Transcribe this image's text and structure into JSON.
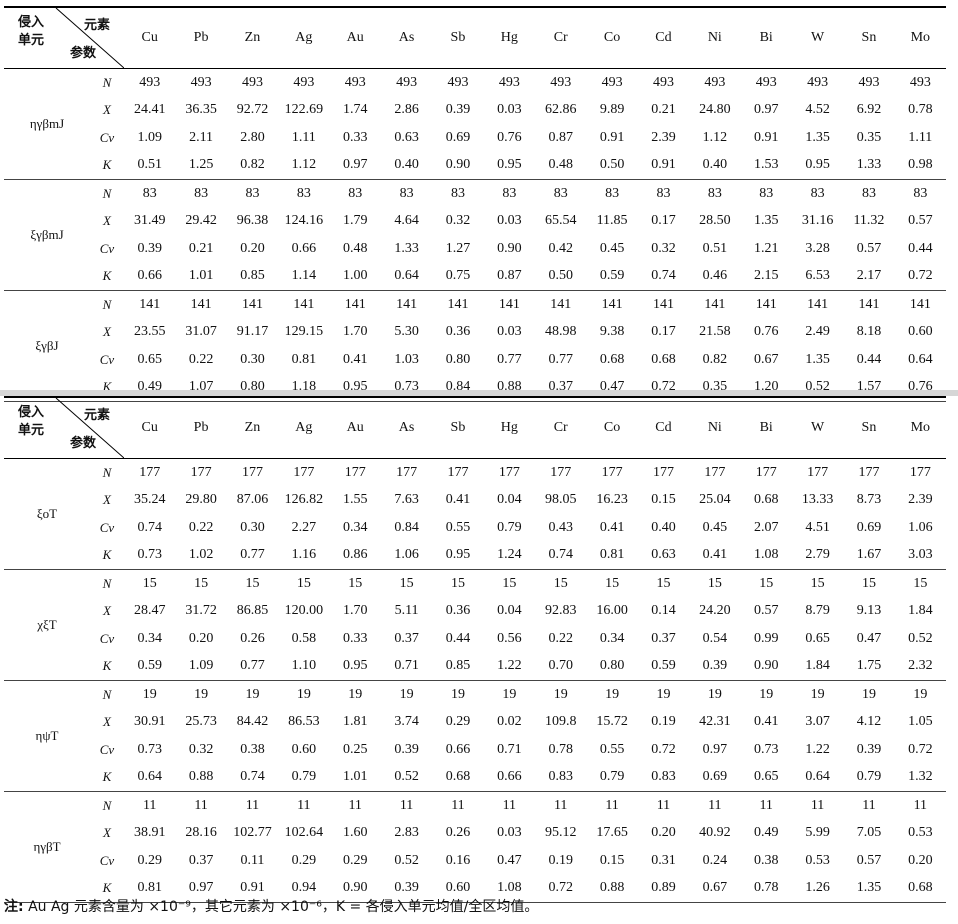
{
  "header": {
    "top_left": [
      "侵入",
      "单元"
    ],
    "top_right": "元素",
    "bottom": "参数",
    "elements": [
      "Cu",
      "Pb",
      "Zn",
      "Ag",
      "Au",
      "As",
      "Sb",
      "Hg",
      "Cr",
      "Co",
      "Cd",
      "Ni",
      "Bi",
      "W",
      "Sn",
      "Mo"
    ]
  },
  "params": [
    "N",
    "X",
    "Cv",
    "K"
  ],
  "table1": [
    {
      "unit": "ηγβmJ",
      "rows": [
        [
          "493",
          "493",
          "493",
          "493",
          "493",
          "493",
          "493",
          "493",
          "493",
          "493",
          "493",
          "493",
          "493",
          "493",
          "493",
          "493"
        ],
        [
          "24.41",
          "36.35",
          "92.72",
          "122.69",
          "1.74",
          "2.86",
          "0.39",
          "0.03",
          "62.86",
          "9.89",
          "0.21",
          "24.80",
          "0.97",
          "4.52",
          "6.92",
          "0.78"
        ],
        [
          "1.09",
          "2.11",
          "2.80",
          "1.11",
          "0.33",
          "0.63",
          "0.69",
          "0.76",
          "0.87",
          "0.91",
          "2.39",
          "1.12",
          "0.91",
          "1.35",
          "0.35",
          "1.11"
        ],
        [
          "0.51",
          "1.25",
          "0.82",
          "1.12",
          "0.97",
          "0.40",
          "0.90",
          "0.95",
          "0.48",
          "0.50",
          "0.91",
          "0.40",
          "1.53",
          "0.95",
          "1.33",
          "0.98"
        ]
      ]
    },
    {
      "unit": "ξγβmJ",
      "rows": [
        [
          "83",
          "83",
          "83",
          "83",
          "83",
          "83",
          "83",
          "83",
          "83",
          "83",
          "83",
          "83",
          "83",
          "83",
          "83",
          "83"
        ],
        [
          "31.49",
          "29.42",
          "96.38",
          "124.16",
          "1.79",
          "4.64",
          "0.32",
          "0.03",
          "65.54",
          "11.85",
          "0.17",
          "28.50",
          "1.35",
          "31.16",
          "11.32",
          "0.57"
        ],
        [
          "0.39",
          "0.21",
          "0.20",
          "0.66",
          "0.48",
          "1.33",
          "1.27",
          "0.90",
          "0.42",
          "0.45",
          "0.32",
          "0.51",
          "1.21",
          "3.28",
          "0.57",
          "0.44"
        ],
        [
          "0.66",
          "1.01",
          "0.85",
          "1.14",
          "1.00",
          "0.64",
          "0.75",
          "0.87",
          "0.50",
          "0.59",
          "0.74",
          "0.46",
          "2.15",
          "6.53",
          "2.17",
          "0.72"
        ]
      ]
    },
    {
      "unit": "ξγβJ",
      "rows": [
        [
          "141",
          "141",
          "141",
          "141",
          "141",
          "141",
          "141",
          "141",
          "141",
          "141",
          "141",
          "141",
          "141",
          "141",
          "141",
          "141"
        ],
        [
          "23.55",
          "31.07",
          "91.17",
          "129.15",
          "1.70",
          "5.30",
          "0.36",
          "0.03",
          "48.98",
          "9.38",
          "0.17",
          "21.58",
          "0.76",
          "2.49",
          "8.18",
          "0.60"
        ],
        [
          "0.65",
          "0.22",
          "0.30",
          "0.81",
          "0.41",
          "1.03",
          "0.80",
          "0.77",
          "0.77",
          "0.68",
          "0.68",
          "0.82",
          "0.67",
          "1.35",
          "0.44",
          "0.64"
        ],
        [
          "0.49",
          "1.07",
          "0.80",
          "1.18",
          "0.95",
          "0.73",
          "0.84",
          "0.88",
          "0.37",
          "0.47",
          "0.72",
          "0.35",
          "1.20",
          "0.52",
          "1.57",
          "0.76"
        ]
      ]
    }
  ],
  "table2": [
    {
      "unit": "ξoT",
      "rows": [
        [
          "177",
          "177",
          "177",
          "177",
          "177",
          "177",
          "177",
          "177",
          "177",
          "177",
          "177",
          "177",
          "177",
          "177",
          "177",
          "177"
        ],
        [
          "35.24",
          "29.80",
          "87.06",
          "126.82",
          "1.55",
          "7.63",
          "0.41",
          "0.04",
          "98.05",
          "16.23",
          "0.15",
          "25.04",
          "0.68",
          "13.33",
          "8.73",
          "2.39"
        ],
        [
          "0.74",
          "0.22",
          "0.30",
          "2.27",
          "0.34",
          "0.84",
          "0.55",
          "0.79",
          "0.43",
          "0.41",
          "0.40",
          "0.45",
          "2.07",
          "4.51",
          "0.69",
          "1.06"
        ],
        [
          "0.73",
          "1.02",
          "0.77",
          "1.16",
          "0.86",
          "1.06",
          "0.95",
          "1.24",
          "0.74",
          "0.81",
          "0.63",
          "0.41",
          "1.08",
          "2.79",
          "1.67",
          "3.03"
        ]
      ]
    },
    {
      "unit": "χξT",
      "rows": [
        [
          "15",
          "15",
          "15",
          "15",
          "15",
          "15",
          "15",
          "15",
          "15",
          "15",
          "15",
          "15",
          "15",
          "15",
          "15",
          "15"
        ],
        [
          "28.47",
          "31.72",
          "86.85",
          "120.00",
          "1.70",
          "5.11",
          "0.36",
          "0.04",
          "92.83",
          "16.00",
          "0.14",
          "24.20",
          "0.57",
          "8.79",
          "9.13",
          "1.84"
        ],
        [
          "0.34",
          "0.20",
          "0.26",
          "0.58",
          "0.33",
          "0.37",
          "0.44",
          "0.56",
          "0.22",
          "0.34",
          "0.37",
          "0.54",
          "0.99",
          "0.65",
          "0.47",
          "0.52"
        ],
        [
          "0.59",
          "1.09",
          "0.77",
          "1.10",
          "0.95",
          "0.71",
          "0.85",
          "1.22",
          "0.70",
          "0.80",
          "0.59",
          "0.39",
          "0.90",
          "1.84",
          "1.75",
          "2.32"
        ]
      ]
    },
    {
      "unit": "ηψT",
      "rows": [
        [
          "19",
          "19",
          "19",
          "19",
          "19",
          "19",
          "19",
          "19",
          "19",
          "19",
          "19",
          "19",
          "19",
          "19",
          "19",
          "19"
        ],
        [
          "30.91",
          "25.73",
          "84.42",
          "86.53",
          "1.81",
          "3.74",
          "0.29",
          "0.02",
          "109.8",
          "15.72",
          "0.19",
          "42.31",
          "0.41",
          "3.07",
          "4.12",
          "1.05"
        ],
        [
          "0.73",
          "0.32",
          "0.38",
          "0.60",
          "0.25",
          "0.39",
          "0.66",
          "0.71",
          "0.78",
          "0.55",
          "0.72",
          "0.97",
          "0.73",
          "1.22",
          "0.39",
          "0.72"
        ],
        [
          "0.64",
          "0.88",
          "0.74",
          "0.79",
          "1.01",
          "0.52",
          "0.68",
          "0.66",
          "0.83",
          "0.79",
          "0.83",
          "0.69",
          "0.65",
          "0.64",
          "0.79",
          "1.32"
        ]
      ]
    },
    {
      "unit": "ηγβT",
      "rows": [
        [
          "11",
          "11",
          "11",
          "11",
          "11",
          "11",
          "11",
          "11",
          "11",
          "11",
          "11",
          "11",
          "11",
          "11",
          "11",
          "11"
        ],
        [
          "38.91",
          "28.16",
          "102.77",
          "102.64",
          "1.60",
          "2.83",
          "0.26",
          "0.03",
          "95.12",
          "17.65",
          "0.20",
          "40.92",
          "0.49",
          "5.99",
          "7.05",
          "0.53"
        ],
        [
          "0.29",
          "0.37",
          "0.11",
          "0.29",
          "0.29",
          "0.52",
          "0.16",
          "0.47",
          "0.19",
          "0.15",
          "0.31",
          "0.24",
          "0.38",
          "0.53",
          "0.57",
          "0.20"
        ],
        [
          "0.81",
          "0.97",
          "0.91",
          "0.94",
          "0.90",
          "0.39",
          "0.60",
          "1.08",
          "0.72",
          "0.88",
          "0.89",
          "0.67",
          "0.78",
          "1.26",
          "1.35",
          "0.68"
        ]
      ]
    }
  ],
  "note": {
    "label": "注:",
    "text": "Au Ag 元素含量为 ×10⁻⁹，其它元素为 ×10⁻⁶，K = 各侵入单元均值/全区均值。"
  }
}
